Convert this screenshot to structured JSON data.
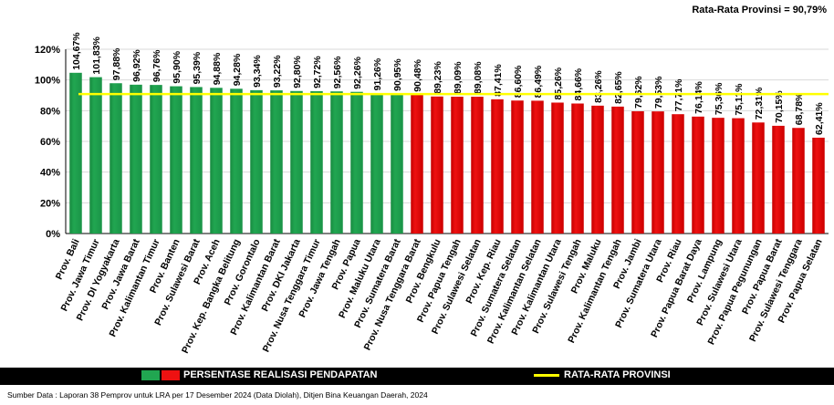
{
  "header": {
    "average_text": "Rata-Rata Provinsi = 90,79%"
  },
  "legend": {
    "series_label": "PERSENTASE REALISASI PENDAPATAN",
    "average_label": "RATA-RATA PROVINSI"
  },
  "source": "Sumber Data : Laporan 38 Pemprov untuk LRA per 17 Desember 2024 (Data Diolah), Ditjen Bina Keuangan Daerah, 2024",
  "colors": {
    "above": "#21a651",
    "below": "#ee1111",
    "average": "#ffff00"
  },
  "chart_data": {
    "type": "bar",
    "ylim": [
      0,
      120
    ],
    "yticks": [
      "0%",
      "20%",
      "40%",
      "60%",
      "80%",
      "100%",
      "120%"
    ],
    "average": 90.79,
    "grid": true,
    "categories": [
      "Prov. Bali",
      "Prov. Jawa Timur",
      "Prov. DI Yogyakarta",
      "Prov. Jawa Barat",
      "Prov. Kalimantan Timur",
      "Prov. Banten",
      "Prov. Sulawesi Barat",
      "Prov. Aceh",
      "Prov. Kep. Bangka Belitung",
      "Prov. Gorontalo",
      "Prov. Kalimantan Barat",
      "Prov. DKI Jakarta",
      "Prov. Nusa Tenggara Timur",
      "Prov. Jawa Tengah",
      "Prov. Papua",
      "Prov. Maluku Utara",
      "Prov. Sumatera Barat",
      "Prov. Nusa Tenggara Barat",
      "Prov. Bengkulu",
      "Prov. Papua Tengah",
      "Prov. Sulawesi Selatan",
      "Prov. Kep. Riau",
      "Prov. Sumatera Selatan",
      "Prov. Kalimantan Selatan",
      "Prov. Kalimantan Utara",
      "Prov. Sulawesi Tengah",
      "Prov. Maluku",
      "Prov. Kalimantan Tengah",
      "Prov. Jambi",
      "Prov. Sumatera Utara",
      "Prov. Riau",
      "Prov. Papua Barat Daya",
      "Prov. Lampung",
      "Prov. Sulawesi Utara",
      "Prov. Papua Pegunungan",
      "Prov. Papua Barat",
      "Prov. Sulawesi Tenggara",
      "Prov. Papua Selatan"
    ],
    "values": [
      104.67,
      101.83,
      97.88,
      96.92,
      96.76,
      95.9,
      95.39,
      94.88,
      94.28,
      93.34,
      93.22,
      92.8,
      92.72,
      92.56,
      92.26,
      91.26,
      90.95,
      90.48,
      89.23,
      89.09,
      89.08,
      87.41,
      86.6,
      86.49,
      85.26,
      84.66,
      83.26,
      82.65,
      79.62,
      79.53,
      77.71,
      76.14,
      75.36,
      75.11,
      72.31,
      70.15,
      68.78,
      62.41
    ],
    "labels": [
      "104,67%",
      "101,83%",
      "97,88%",
      "96,92%",
      "96,76%",
      "95,90%",
      "95,39%",
      "94,88%",
      "94,28%",
      "93,34%",
      "93,22%",
      "92,80%",
      "92,72%",
      "92,56%",
      "92,26%",
      "91,26%",
      "90,95%",
      "90,48%",
      "89,23%",
      "89,09%",
      "89,08%",
      "87,41%",
      "86,60%",
      "86,49%",
      "85,26%",
      "84,66%",
      "83,26%",
      "82,65%",
      "79,62%",
      "79,53%",
      "77,71%",
      "76,14%",
      "75,36%",
      "75,11%",
      "72,31%",
      "70,15%",
      "68,78%",
      "62,41%"
    ]
  }
}
